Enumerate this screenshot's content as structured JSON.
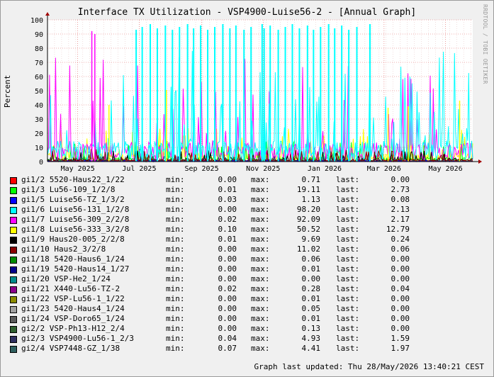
{
  "chart_data": {
    "type": "line",
    "title": "Interface TX Utilization - VSP4900-Luise56-2 - [Annual Graph]",
    "ylabel": "Percent",
    "ylim": [
      0,
      100
    ],
    "yticks": [
      0,
      10,
      20,
      30,
      40,
      50,
      60,
      70,
      80,
      90,
      100
    ],
    "xtick_labels": [
      "May 2025",
      "Jul 2025",
      "Sep 2025",
      "Nov 2025",
      "Jan 2026",
      "Mar 2026",
      "May 2026"
    ],
    "x_range": [
      "2025-04-01",
      "2026-05-28"
    ],
    "xtick_dates": [
      "2025-05-01",
      "2025-07-01",
      "2025-09-01",
      "2025-11-01",
      "2026-01-01",
      "2026-03-01",
      "2026-05-01"
    ],
    "grid": true,
    "legend_placement": "bottom",
    "series": [
      {
        "name": "gi1/2 5520-Haus22_1/22",
        "color": "#ff0000",
        "min": "0.00",
        "max": "0.71",
        "last": "0.00"
      },
      {
        "name": "gi1/3 Lu56-109_1/2/8",
        "color": "#00ff00",
        "min": "0.01",
        "max": "19.11",
        "last": "2.73"
      },
      {
        "name": "gi1/5 Luise56-TZ_1/3/2",
        "color": "#0000ff",
        "min": "0.03",
        "max": "1.13",
        "last": "0.08"
      },
      {
        "name": "gi1/6 Luise56-131_1/2/8",
        "color": "#00ffff",
        "min": "0.00",
        "max": "98.20",
        "last": "2.13"
      },
      {
        "name": "gi1/7 Luise56-309_2/2/8",
        "color": "#ff00ff",
        "min": "0.02",
        "max": "92.09",
        "last": "2.17"
      },
      {
        "name": "gi1/8 Luise56-333_3/2/8",
        "color": "#ffff00",
        "min": "0.10",
        "max": "50.52",
        "last": "12.79"
      },
      {
        "name": "gi1/9 Haus20-005_2/2/8",
        "color": "#000000",
        "min": "0.01",
        "max": "9.69",
        "last": "0.24"
      },
      {
        "name": "gi1/10 Haus2_3/2/8",
        "color": "#8b0000",
        "min": "0.00",
        "max": "11.02",
        "last": "0.06"
      },
      {
        "name": "gi1/18 5420-Haus6_1/24",
        "color": "#008b00",
        "min": "0.00",
        "max": "0.06",
        "last": "0.00"
      },
      {
        "name": "gi1/19 5420-Haus14_1/27",
        "color": "#00008b",
        "min": "0.00",
        "max": "0.01",
        "last": "0.00"
      },
      {
        "name": "gi1/20 VSP-He2_1/24",
        "color": "#008b8b",
        "min": "0.00",
        "max": "0.00",
        "last": "0.00"
      },
      {
        "name": "gi1/21 X440-Lu56-TZ-2",
        "color": "#8b008b",
        "min": "0.02",
        "max": "0.28",
        "last": "0.04"
      },
      {
        "name": "gi1/22 VSP-Lu56-1_1/22",
        "color": "#8b8b00",
        "min": "0.00",
        "max": "0.01",
        "last": "0.00"
      },
      {
        "name": "gi1/23 5420-Haus4_1/24",
        "color": "#a0a0a0",
        "min": "0.00",
        "max": "0.05",
        "last": "0.00"
      },
      {
        "name": "gi1/24 VSP-Doro65_1/24",
        "color": "#5a5a5a",
        "min": "0.00",
        "max": "0.01",
        "last": "0.00"
      },
      {
        "name": "gi2/2 VSP-Ph13-H12_2/4",
        "color": "#2f5f2f",
        "min": "0.00",
        "max": "0.13",
        "last": "0.00"
      },
      {
        "name": "gi2/3 VSP4900-Lu56-1_2/3",
        "color": "#2f2f5f",
        "min": "0.04",
        "max": "4.93",
        "last": "1.59"
      },
      {
        "name": "gi2/4 VSP7448-GZ_1/38",
        "color": "#2f5f5f",
        "min": "0.07",
        "max": "4.41",
        "last": "1.97"
      }
    ]
  },
  "legend_labels": {
    "min": "min:",
    "max": "max:",
    "last": "last:"
  },
  "watermark": "RRDTOOL / TOBI OETIKER",
  "updated": "Graph last updated: Thu 28/May/2026 13:40:21 CEST"
}
